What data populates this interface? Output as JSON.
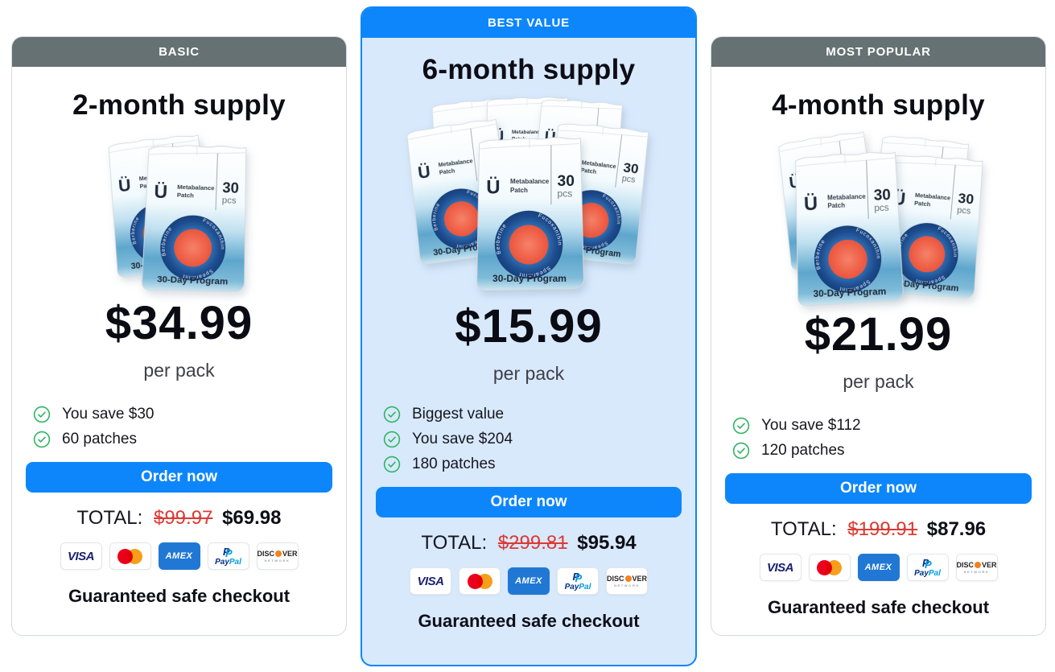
{
  "shared": {
    "order_label": "Order now",
    "total_label": "TOTAL:",
    "guarantee": "Guaranteed safe checkout"
  },
  "cards": [
    {
      "badge": "BASIC",
      "title": "2-month supply",
      "price": "$34.99",
      "price_unit": "per pack",
      "features": [
        "You save $30",
        "60 patches"
      ],
      "total_old": "$99.97",
      "total_new": "$69.98",
      "pack_count": 2
    },
    {
      "badge": "BEST VALUE",
      "title": "6-month supply",
      "price": "$15.99",
      "price_unit": "per pack",
      "features": [
        "Biggest value",
        "You save $204",
        "180 patches"
      ],
      "total_old": "$299.81",
      "total_new": "$95.94",
      "pack_count": 6
    },
    {
      "badge": "MOST POPULAR",
      "title": "4-month supply",
      "price": "$21.99",
      "price_unit": "per pack",
      "features": [
        "You save $112",
        "120 patches"
      ],
      "total_old": "$199.91",
      "total_new": "$87.96",
      "pack_count": 4
    }
  ],
  "product": {
    "logo_glyph": "Ü",
    "brand_line1": "Metabalance",
    "brand_line2": "Patch",
    "count": "30",
    "count_unit": "pcs",
    "program": "30-Day Program",
    "ring_labels": [
      "Fucoxanthin",
      "Spearmint",
      "Berberine"
    ]
  },
  "payments": {
    "visa": "VISA",
    "amex": "AMEX",
    "paypal_mark": "P",
    "paypal_pay": "Pay",
    "paypal_pal": "Pal",
    "discover_left": "DISC",
    "discover_right": "VER",
    "discover_sub": "NETWORK"
  },
  "colors": {
    "accent_blue": "#0d86fb",
    "header_gray": "#657173",
    "best_value_bg": "#d8e9fc",
    "check_green": "#2fb463",
    "strike_red": "#dd3a34",
    "text_dark": "#0e0e17"
  }
}
